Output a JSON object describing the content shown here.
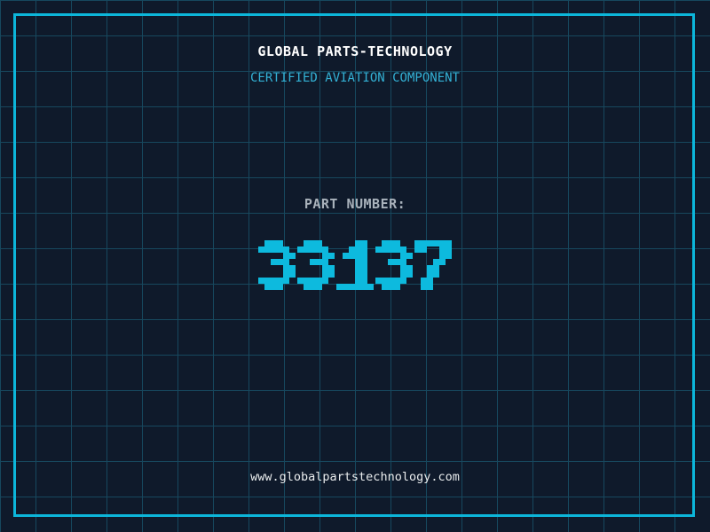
{
  "app": {
    "background_color": "#0f1a2b",
    "grid_color": "#17485e",
    "frame_color": "#0cb6da"
  },
  "header": {
    "title": "GLOBAL PARTS-TECHNOLOGY",
    "title_color": "#ffffff",
    "subtitle": "CERTIFIED AVIATION COMPONENT",
    "subtitle_color": "#33b1d5"
  },
  "part": {
    "label": "PART NUMBER:",
    "label_color": "#a9b2bb",
    "number": "33137",
    "number_color": "#0dbade"
  },
  "footer": {
    "url": "www.globalpartstechnology.com",
    "color": "#e9eced"
  }
}
